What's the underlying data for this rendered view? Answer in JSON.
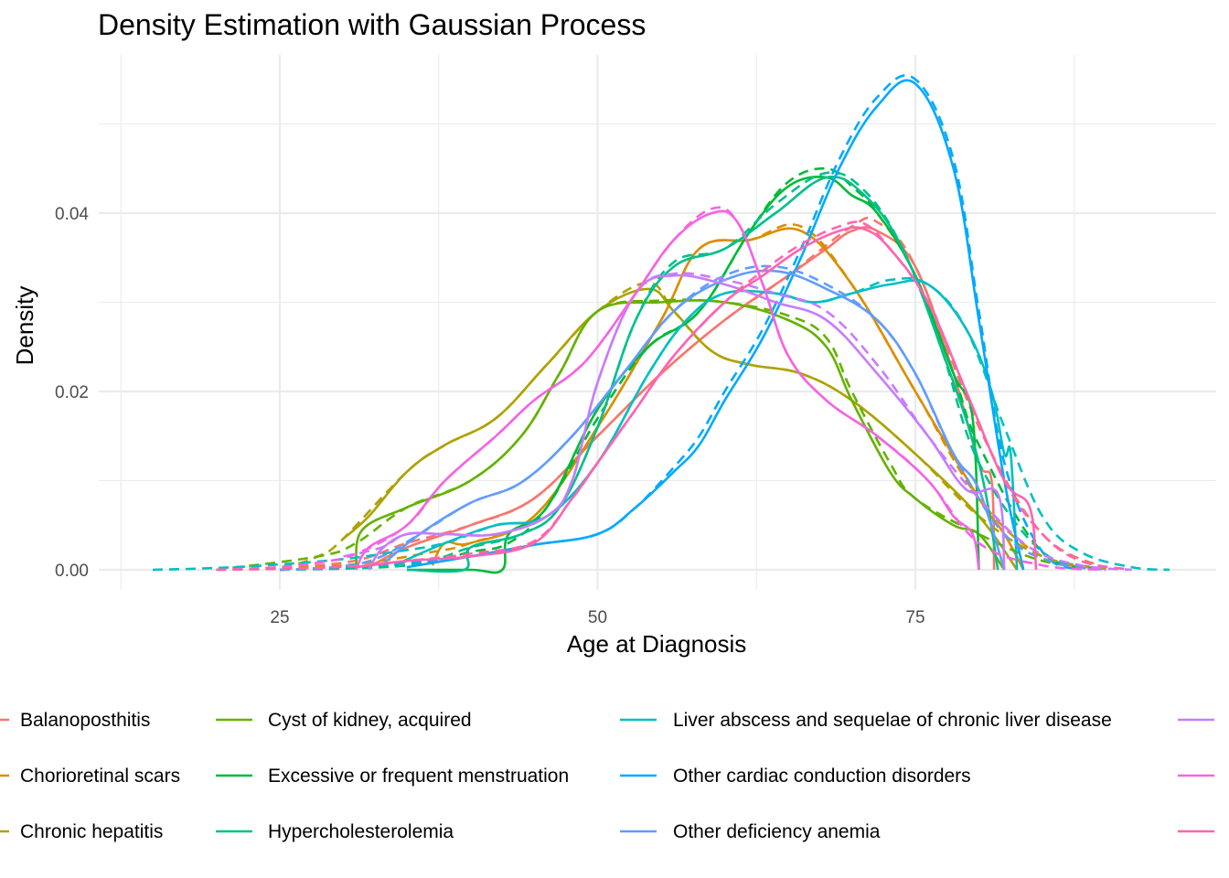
{
  "chart_data": {
    "type": "line",
    "title": "Density Estimation with Gaussian Process",
    "xlabel": "Age at Diagnosis",
    "ylabel": "Density",
    "xlim": [
      12.5,
      95
    ],
    "ylim": [
      0,
      0.055
    ],
    "x_ticks": [
      25,
      50,
      75
    ],
    "x_tick_labels": [
      "25",
      "50",
      "75"
    ],
    "y_ticks": [
      0,
      0.02,
      0.04
    ],
    "y_tick_labels": [
      "0.00",
      "0.02",
      "0.04"
    ],
    "grid": true,
    "legend_position": "bottom",
    "line_styles": {
      "estimate": "solid",
      "reference": "dashed"
    },
    "series": [
      {
        "name": "Balanoposthitis",
        "color": "#F8766D",
        "x": [
          32,
          35,
          40,
          45,
          50,
          55,
          60,
          65,
          68,
          70,
          72,
          75,
          78,
          80,
          81,
          81.2
        ],
        "estimate": [
          0.0003,
          0.0025,
          0.005,
          0.008,
          0.015,
          0.022,
          0.028,
          0.033,
          0.036,
          0.038,
          0.038,
          0.034,
          0.022,
          0.012,
          0.01,
          0
        ],
        "reference_x": [
          20,
          30,
          35,
          40,
          45,
          50,
          55,
          60,
          65,
          70,
          72,
          75,
          80,
          85,
          90
        ],
        "reference": [
          0,
          0.0008,
          0.003,
          0.005,
          0.008,
          0.015,
          0.022,
          0.028,
          0.033,
          0.0385,
          0.039,
          0.034,
          0.016,
          0.004,
          0.0002
        ]
      },
      {
        "name": "Chorioretinal scars",
        "color": "#DB8E00",
        "x": [
          37,
          38,
          40,
          45,
          50,
          55,
          58,
          62,
          66,
          70,
          75,
          80,
          82,
          83.5
        ],
        "estimate": [
          0.0005,
          0.003,
          0.003,
          0.006,
          0.016,
          0.028,
          0.036,
          0.037,
          0.038,
          0.032,
          0.02,
          0.008,
          0.004,
          0
        ],
        "reference_x": [
          20,
          30,
          37,
          40,
          45,
          50,
          55,
          58,
          62,
          66,
          70,
          75,
          80,
          85,
          90
        ],
        "reference": [
          0,
          0.0005,
          0.002,
          0.003,
          0.006,
          0.016,
          0.028,
          0.036,
          0.037,
          0.0385,
          0.032,
          0.02,
          0.008,
          0.0015,
          0.0001
        ]
      },
      {
        "name": "Chronic hepatitis",
        "color": "#AEA200",
        "x": [
          30,
          32,
          35,
          38,
          42,
          46,
          50,
          54,
          56,
          59,
          62,
          66,
          70,
          75,
          80,
          83
        ],
        "estimate": [
          0.0035,
          0.006,
          0.011,
          0.014,
          0.017,
          0.023,
          0.029,
          0.0315,
          0.029,
          0.0245,
          0.023,
          0.022,
          0.019,
          0.013,
          0.006,
          0
        ],
        "reference_x": [
          20,
          25,
          28,
          30,
          35,
          38,
          42,
          46,
          50,
          54,
          56,
          59,
          62,
          66,
          70,
          75,
          80,
          85,
          90
        ],
        "reference": [
          0,
          0.0003,
          0.0015,
          0.0035,
          0.011,
          0.014,
          0.017,
          0.023,
          0.029,
          0.0322,
          0.029,
          0.0245,
          0.023,
          0.022,
          0.019,
          0.013,
          0.006,
          0.0015,
          0.0001
        ]
      },
      {
        "name": "Cyst of kidney, acquired",
        "color": "#64B200",
        "x": [
          31,
          31.5,
          35,
          40,
          44,
          47,
          50,
          55,
          60,
          65,
          68,
          70,
          73,
          75,
          78,
          80,
          82
        ],
        "estimate": [
          0.0005,
          0.0045,
          0.007,
          0.01,
          0.015,
          0.022,
          0.029,
          0.03,
          0.03,
          0.028,
          0.025,
          0.019,
          0.011,
          0.008,
          0.005,
          0.004,
          0
        ],
        "reference_x": [
          20,
          28,
          31,
          35,
          40,
          44,
          47,
          50,
          55,
          60,
          65,
          68,
          70,
          73,
          75,
          80,
          85,
          90
        ],
        "reference": [
          0,
          0.0015,
          0.003,
          0.007,
          0.01,
          0.015,
          0.022,
          0.029,
          0.0302,
          0.03,
          0.0285,
          0.026,
          0.02,
          0.012,
          0.008,
          0.004,
          0.001,
          0.0001
        ]
      },
      {
        "name": "Excessive or frequent menstruation",
        "color": "#00BA38",
        "x": [
          35,
          40,
          42.5,
          43,
          46,
          50,
          54,
          58,
          62,
          65,
          68,
          70,
          72,
          75,
          78,
          79.5,
          80
        ],
        "estimate": [
          0,
          0,
          0,
          0.004,
          0.007,
          0.018,
          0.025,
          0.029,
          0.038,
          0.043,
          0.044,
          0.042,
          0.04,
          0.033,
          0.022,
          0.017,
          0
        ],
        "reference_x": [
          25,
          35,
          40,
          43,
          46,
          50,
          54,
          58,
          62,
          65,
          68,
          70,
          72,
          75,
          78,
          80,
          85,
          90
        ],
        "reference": [
          0,
          0.0005,
          0.002,
          0.003,
          0.007,
          0.017,
          0.025,
          0.029,
          0.038,
          0.0435,
          0.045,
          0.043,
          0.04,
          0.033,
          0.022,
          0.014,
          0.002,
          0.0001
        ]
      },
      {
        "name": "Hypercholesterolemia",
        "color": "#00C08B",
        "x": [
          35,
          39.5,
          40,
          44,
          47,
          50,
          53,
          56,
          60,
          64,
          68,
          71,
          74,
          77,
          80,
          81.5
        ],
        "estimate": [
          0,
          0,
          0.0025,
          0.004,
          0.007,
          0.016,
          0.028,
          0.034,
          0.036,
          0.04,
          0.044,
          0.042,
          0.036,
          0.025,
          0.012,
          0
        ],
        "reference_x": [
          25,
          35,
          40,
          44,
          47,
          50,
          53,
          56,
          60,
          64,
          68,
          71,
          74,
          77,
          80,
          85,
          90
        ],
        "reference": [
          0,
          0.0005,
          0.0025,
          0.004,
          0.007,
          0.016,
          0.028,
          0.0345,
          0.036,
          0.041,
          0.0445,
          0.0425,
          0.036,
          0.025,
          0.012,
          0.002,
          0.0001
        ]
      },
      {
        "name": "Liver abscess and sequelae of chronic liver disease",
        "color": "#00BFC4",
        "x": [
          34,
          38,
          42,
          46,
          50,
          54,
          57,
          60,
          64,
          67,
          70,
          73,
          76,
          79,
          81,
          82,
          82.5,
          83
        ],
        "estimate": [
          0.0005,
          0.003,
          0.005,
          0.006,
          0.012,
          0.022,
          0.028,
          0.031,
          0.031,
          0.03,
          0.031,
          0.032,
          0.032,
          0.027,
          0.02,
          0.013,
          0.013,
          0
        ],
        "reference_x": [
          15,
          20,
          25,
          30,
          34,
          38,
          42,
          46,
          50,
          54,
          57,
          60,
          64,
          67,
          70,
          73,
          76,
          79,
          82,
          85,
          88,
          92,
          95
        ],
        "reference": [
          0,
          0.0002,
          0.0006,
          0.0012,
          0.002,
          0.003,
          0.005,
          0.006,
          0.012,
          0.022,
          0.028,
          0.031,
          0.031,
          0.03,
          0.031,
          0.0325,
          0.032,
          0.027,
          0.016,
          0.006,
          0.002,
          0.0003,
          0
        ]
      },
      {
        "name": "Other cardiac conduction disorders",
        "color": "#00A9FF",
        "x": [
          35,
          40,
          45,
          50,
          53,
          56,
          58,
          60,
          63,
          66,
          69,
          72,
          75,
          78,
          80,
          82,
          83.5
        ],
        "estimate": [
          0.0003,
          0.0015,
          0.0028,
          0.004,
          0.007,
          0.011,
          0.014,
          0.019,
          0.026,
          0.035,
          0.045,
          0.052,
          0.0545,
          0.045,
          0.028,
          0.01,
          0
        ],
        "reference_x": [
          25,
          30,
          35,
          40,
          45,
          50,
          53,
          56,
          58,
          60,
          63,
          66,
          69,
          72,
          75,
          78,
          80,
          82,
          85,
          88
        ],
        "reference": [
          0,
          0.0003,
          0.0008,
          0.0015,
          0.0028,
          0.004,
          0.007,
          0.0115,
          0.015,
          0.02,
          0.027,
          0.036,
          0.046,
          0.053,
          0.055,
          0.046,
          0.029,
          0.012,
          0.002,
          0
        ]
      },
      {
        "name": "Other deficiency anemia",
        "color": "#619CFF",
        "x": [
          33,
          36,
          40,
          44,
          48,
          52,
          56,
          60,
          64,
          68,
          72,
          75,
          78,
          80,
          82
        ],
        "estimate": [
          0.0005,
          0.004,
          0.0075,
          0.0098,
          0.015,
          0.022,
          0.029,
          0.0325,
          0.0335,
          0.0315,
          0.028,
          0.022,
          0.013,
          0.009,
          0
        ],
        "reference_x": [
          25,
          30,
          33,
          36,
          40,
          44,
          48,
          52,
          56,
          60,
          64,
          68,
          72,
          75,
          78,
          82,
          86,
          90
        ],
        "reference": [
          0,
          0.0004,
          0.0015,
          0.004,
          0.0075,
          0.0098,
          0.015,
          0.022,
          0.029,
          0.033,
          0.034,
          0.032,
          0.028,
          0.022,
          0.013,
          0.004,
          0.0008,
          0
        ]
      },
      {
        "name": "",
        "color": "#C77CFF",
        "x": [
          32,
          33,
          35,
          38,
          42,
          46,
          48,
          50,
          53,
          56,
          60,
          64,
          68,
          72,
          76,
          79,
          81.5,
          82
        ],
        "estimate": [
          0,
          0.0023,
          0.004,
          0.004,
          0.004,
          0.006,
          0.01,
          0.021,
          0.031,
          0.033,
          0.032,
          0.03,
          0.028,
          0.022,
          0.015,
          0.009,
          0.0085,
          0
        ],
        "reference_x": [
          30,
          33,
          35,
          38,
          42,
          46,
          48,
          50,
          53,
          56,
          60,
          64,
          68,
          72,
          76,
          80,
          84,
          88,
          92
        ],
        "reference": [
          0.0015,
          0.0025,
          0.004,
          0.004,
          0.004,
          0.006,
          0.01,
          0.021,
          0.031,
          0.0332,
          0.0325,
          0.031,
          0.029,
          0.023,
          0.015,
          0.008,
          0.0025,
          0.0005,
          0
        ]
      },
      {
        "name": "",
        "color": "#F564E3",
        "x": [
          31,
          32,
          35,
          38,
          42,
          45,
          48,
          50,
          53,
          56,
          59,
          61,
          63,
          65,
          68,
          72,
          76,
          78,
          79.5,
          80
        ],
        "estimate": [
          0,
          0.0025,
          0.005,
          0.01,
          0.015,
          0.019,
          0.022,
          0.025,
          0.031,
          0.037,
          0.04,
          0.039,
          0.032,
          0.024,
          0.019,
          0.015,
          0.01,
          0.006,
          0.004,
          0
        ],
        "reference_x": [
          20,
          25,
          28,
          31,
          35,
          38,
          42,
          45,
          48,
          50,
          53,
          56,
          59,
          61,
          63,
          65,
          68,
          72,
          76,
          80,
          85,
          90
        ],
        "reference": [
          0,
          0.0003,
          0.0008,
          0.0018,
          0.005,
          0.01,
          0.015,
          0.019,
          0.022,
          0.025,
          0.031,
          0.037,
          0.0405,
          0.039,
          0.032,
          0.024,
          0.019,
          0.015,
          0.01,
          0.003,
          0.0005,
          0
        ]
      },
      {
        "name": "",
        "color": "#FF64B0",
        "x": [
          31,
          35,
          40,
          45,
          48,
          50,
          53,
          56,
          60,
          63,
          66,
          69,
          71,
          73,
          76,
          79,
          82,
          84,
          84.5
        ],
        "estimate": [
          0.0003,
          0.001,
          0.0015,
          0.003,
          0.008,
          0.012,
          0.018,
          0.024,
          0.03,
          0.033,
          0.036,
          0.038,
          0.0382,
          0.036,
          0.03,
          0.02,
          0.01,
          0.007,
          0
        ],
        "reference_x": [
          20,
          25,
          31,
          35,
          40,
          45,
          48,
          50,
          53,
          56,
          60,
          63,
          66,
          69,
          71,
          73,
          76,
          79,
          82,
          85,
          88,
          92
        ],
        "reference": [
          0,
          0.0001,
          0.0004,
          0.001,
          0.0018,
          0.0032,
          0.008,
          0.012,
          0.018,
          0.024,
          0.03,
          0.0335,
          0.0365,
          0.0385,
          0.0388,
          0.036,
          0.03,
          0.02,
          0.01,
          0.004,
          0.001,
          0
        ]
      }
    ]
  }
}
